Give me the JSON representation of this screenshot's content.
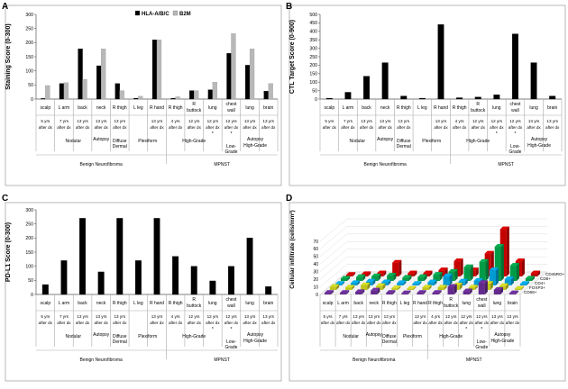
{
  "panel_letters": [
    "A",
    "B",
    "C",
    "D"
  ],
  "x_axis": {
    "sites": [
      "scalp",
      "L arm",
      "back",
      "neck",
      "R thigh",
      "L leg",
      "R hand",
      "R thigh",
      "R buttock",
      "lung",
      "chest wall",
      "lung",
      "brain"
    ],
    "times": [
      "5 yrs after dx",
      "7 yrs after dx",
      "13 yrs after dx",
      "13 yrs after dx",
      "13 yrs after dx",
      "",
      "13 yrs after dx",
      "4 yrs after dx",
      "12 yrs after dx",
      "12 yrs after dx",
      "12 yrs after dx",
      "13 yrs after dx",
      "13 yrs after dx"
    ],
    "marks": [
      "",
      "",
      "",
      "",
      "",
      "",
      "",
      "",
      "",
      "*",
      "*",
      "",
      ""
    ],
    "autopsy_label": "Autopsy",
    "subgroups": [
      {
        "label": "Nodular",
        "start": 0,
        "end": 3
      },
      {
        "label": "Dermal",
        "start": 4,
        "end": 4
      },
      {
        "label": "Diffuse",
        "start": 4,
        "end": 4
      },
      {
        "label": "Plexiform",
        "start": 5,
        "end": 6
      },
      {
        "label": "High-Grade",
        "start": 7,
        "end": 9
      },
      {
        "label": "Low-Grade",
        "start": 10,
        "end": 10
      },
      {
        "label": "High-Grade",
        "start": 11,
        "end": 12
      }
    ],
    "groups": [
      {
        "label": "Benign Neurofibroma",
        "start": 0,
        "end": 6
      },
      {
        "label": "MPNST",
        "start": 7,
        "end": 12
      }
    ]
  },
  "chart_data": [
    {
      "id": "A",
      "type": "bar",
      "title": "",
      "xlabel": "",
      "ylabel": "Staining Score (0-300)",
      "ylim": [
        0,
        300
      ],
      "ticks": [
        0,
        50,
        100,
        150,
        200,
        250,
        300
      ],
      "legend": [
        "HLA-A/B/C",
        "B2M"
      ],
      "series": [
        {
          "name": "HLA-A/B/C",
          "color": "#000000",
          "values": [
            2,
            55,
            178,
            118,
            55,
            3,
            210,
            3,
            30,
            33,
            162,
            120,
            28
          ]
        },
        {
          "name": "B2M",
          "color": "#b8b8b8",
          "values": [
            48,
            58,
            70,
            178,
            30,
            10,
            210,
            8,
            30,
            60,
            232,
            178,
            55
          ]
        }
      ]
    },
    {
      "id": "B",
      "type": "bar",
      "title": "",
      "xlabel": "",
      "ylabel": "CTL Target Score (0-900)",
      "ylim": [
        0,
        500
      ],
      "ticks": [
        0,
        50,
        100,
        150,
        200,
        250,
        300,
        350,
        400,
        450,
        500
      ],
      "series": [
        {
          "name": "CTL Target",
          "color": "#000000",
          "values": [
            5,
            40,
            135,
            215,
            18,
            5,
            440,
            8,
            12,
            25,
            385,
            215,
            18
          ]
        }
      ]
    },
    {
      "id": "C",
      "type": "bar",
      "title": "",
      "xlabel": "",
      "ylabel": "PD-L1 Score (0-300)",
      "ylim": [
        0,
        300
      ],
      "ticks": [
        0,
        50,
        100,
        150,
        200,
        250,
        300
      ],
      "series": [
        {
          "name": "PD-L1",
          "color": "#000000",
          "values": [
            35,
            120,
            270,
            80,
            270,
            120,
            270,
            135,
            100,
            48,
            100,
            200,
            28
          ]
        }
      ]
    },
    {
      "id": "D",
      "type": "bar3d",
      "title": "",
      "xlabel": "",
      "ylabel": "Cellular infiltrate (cells/mm²)",
      "ylim": [
        0,
        70
      ],
      "ticks": [
        0,
        10,
        20,
        30,
        40,
        50,
        60,
        70
      ],
      "series": [
        {
          "name": "CD68+",
          "color": "#7030a0",
          "values": [
            2,
            2,
            3,
            5,
            2,
            1,
            2,
            2,
            10,
            4,
            15,
            6,
            1
          ]
        },
        {
          "name": "FOXP3+",
          "color": "#d9e021",
          "values": [
            4,
            3,
            6,
            5,
            2,
            1,
            3,
            3,
            6,
            3,
            8,
            5,
            1
          ]
        },
        {
          "name": "CD4+",
          "color": "#00b0f0",
          "values": [
            2,
            3,
            5,
            4,
            3,
            2,
            4,
            12,
            5,
            6,
            20,
            8,
            2
          ]
        },
        {
          "name": "CD8+",
          "color": "#00b050",
          "values": [
            3,
            5,
            6,
            7,
            4,
            5,
            8,
            12,
            18,
            25,
            45,
            20,
            3
          ]
        },
        {
          "name": "CD45RO+",
          "color": "#e00000",
          "values": [
            2,
            3,
            4,
            18,
            4,
            4,
            8,
            20,
            8,
            30,
            62,
            20,
            4
          ]
        }
      ]
    }
  ]
}
